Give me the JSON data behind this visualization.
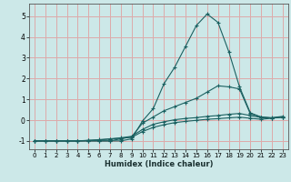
{
  "title": "",
  "xlabel": "Humidex (Indice chaleur)",
  "ylabel": "",
  "xlim": [
    -0.5,
    23.5
  ],
  "ylim": [
    -1.4,
    5.6
  ],
  "yticks": [
    -1,
    0,
    1,
    2,
    3,
    4,
    5
  ],
  "xticks": [
    0,
    1,
    2,
    3,
    4,
    5,
    6,
    7,
    8,
    9,
    10,
    11,
    12,
    13,
    14,
    15,
    16,
    17,
    18,
    19,
    20,
    21,
    22,
    23
  ],
  "bg_color": "#cce8e8",
  "grid_color": "#ddaaaa",
  "line_color": "#1a6060",
  "lines": [
    {
      "x": [
        0,
        1,
        2,
        3,
        4,
        5,
        6,
        7,
        8,
        9,
        10,
        11,
        12,
        13,
        14,
        15,
        16,
        17,
        18,
        19,
        20,
        21,
        22,
        23
      ],
      "y": [
        -1.0,
        -1.0,
        -1.0,
        -1.0,
        -1.0,
        -1.0,
        -1.0,
        -1.0,
        -1.0,
        -0.9,
        -0.05,
        0.55,
        1.75,
        2.55,
        3.55,
        4.55,
        5.1,
        4.7,
        3.3,
        1.6,
        0.35,
        0.15,
        0.1,
        0.15
      ]
    },
    {
      "x": [
        0,
        1,
        2,
        3,
        4,
        5,
        6,
        7,
        8,
        9,
        10,
        11,
        12,
        13,
        14,
        15,
        16,
        17,
        18,
        19,
        20,
        21,
        22,
        23
      ],
      "y": [
        -1.0,
        -1.0,
        -1.0,
        -1.0,
        -1.0,
        -1.0,
        -1.0,
        -1.0,
        -0.9,
        -0.8,
        -0.15,
        0.15,
        0.45,
        0.65,
        0.85,
        1.05,
        1.35,
        1.65,
        1.6,
        1.5,
        0.3,
        0.15,
        0.1,
        0.15
      ]
    },
    {
      "x": [
        0,
        1,
        2,
        3,
        4,
        5,
        6,
        7,
        8,
        9,
        10,
        11,
        12,
        13,
        14,
        15,
        16,
        17,
        18,
        19,
        20,
        21,
        22,
        23
      ],
      "y": [
        -1.0,
        -1.0,
        -1.0,
        -1.0,
        -1.0,
        -0.98,
        -0.95,
        -0.9,
        -0.85,
        -0.78,
        -0.45,
        -0.2,
        -0.08,
        0.02,
        0.08,
        0.12,
        0.18,
        0.22,
        0.28,
        0.32,
        0.22,
        0.12,
        0.12,
        0.18
      ]
    },
    {
      "x": [
        0,
        1,
        2,
        3,
        4,
        5,
        6,
        7,
        8,
        9,
        10,
        11,
        12,
        13,
        14,
        15,
        16,
        17,
        18,
        19,
        20,
        21,
        22,
        23
      ],
      "y": [
        -1.0,
        -1.0,
        -1.0,
        -1.0,
        -1.0,
        -0.97,
        -0.94,
        -0.91,
        -0.87,
        -0.83,
        -0.55,
        -0.35,
        -0.22,
        -0.12,
        -0.06,
        -0.01,
        0.04,
        0.07,
        0.11,
        0.14,
        0.09,
        0.04,
        0.09,
        0.14
      ]
    }
  ]
}
